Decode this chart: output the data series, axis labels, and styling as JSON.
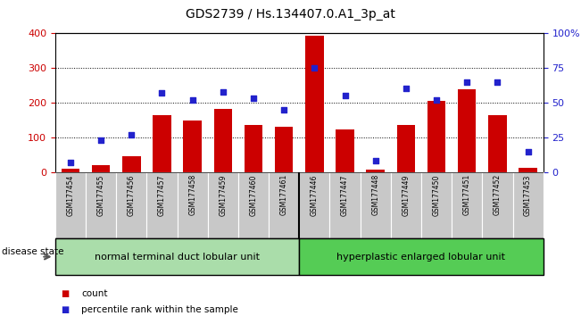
{
  "title": "GDS2739 / Hs.134407.0.A1_3p_at",
  "categories": [
    "GSM177454",
    "GSM177455",
    "GSM177456",
    "GSM177457",
    "GSM177458",
    "GSM177459",
    "GSM177460",
    "GSM177461",
    "GSM177446",
    "GSM177447",
    "GSM177448",
    "GSM177449",
    "GSM177450",
    "GSM177451",
    "GSM177452",
    "GSM177453"
  ],
  "counts": [
    10,
    20,
    45,
    163,
    148,
    183,
    135,
    131,
    392,
    122,
    7,
    137,
    205,
    238,
    165,
    12
  ],
  "percentiles": [
    7,
    23,
    27,
    57,
    52,
    58,
    53,
    45,
    75,
    55,
    8,
    60,
    52,
    65,
    65,
    15
  ],
  "group1_label": "normal terminal duct lobular unit",
  "group2_label": "hyperplastic enlarged lobular unit",
  "group1_count": 8,
  "group2_count": 8,
  "bar_color": "#cc0000",
  "dot_color": "#2222cc",
  "ylim_left": [
    0,
    400
  ],
  "ylim_right": [
    0,
    100
  ],
  "yticks_left": [
    0,
    100,
    200,
    300,
    400
  ],
  "yticks_right": [
    0,
    25,
    50,
    75,
    100
  ],
  "yticklabels_right": [
    "0",
    "25",
    "50",
    "75",
    "100%"
  ],
  "tick_bg": "#c8c8c8",
  "group1_bg": "#aaddaa",
  "group2_bg": "#55cc55",
  "legend_count_label": "count",
  "legend_pct_label": "percentile rank within the sample"
}
